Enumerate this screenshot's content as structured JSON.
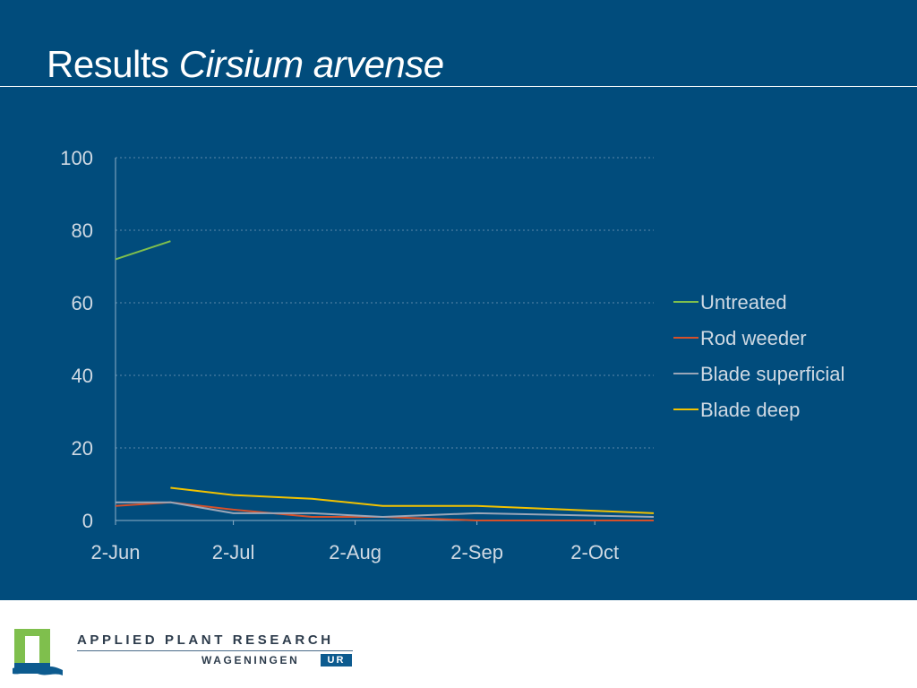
{
  "slide": {
    "title_main": "Results",
    "title_species": "Cirsium arvense"
  },
  "colors": {
    "background": "#014c7c",
    "untreated": "#7fbf4d",
    "rod_weeder": "#d4502a",
    "blade_superficial": "#9aa6b8",
    "blade_deep": "#f2c200"
  },
  "chart_data": {
    "type": "line",
    "title": "",
    "xlabel": "",
    "ylabel": "",
    "ylim": [
      0,
      100
    ],
    "yticks": [
      "0",
      "20",
      "40",
      "60",
      "80",
      "100"
    ],
    "xlim": [
      "2-Jun",
      "17-Oct"
    ],
    "xticks": [
      "2-Jun",
      "2-Jul",
      "2-Aug",
      "2-Sep",
      "2-Oct"
    ],
    "grid": "horizontal dotted",
    "legend_position": "right",
    "series": [
      {
        "name": "Untreated",
        "color": "#7fbf4d",
        "points": [
          {
            "x": "2-Jun",
            "y": 72
          },
          {
            "x": "16-Jun",
            "y": 77
          }
        ]
      },
      {
        "name": "Rod weeder",
        "color": "#d4502a",
        "points": [
          {
            "x": "2-Jun",
            "y": 4
          },
          {
            "x": "16-Jun",
            "y": 5
          },
          {
            "x": "2-Jul",
            "y": 3
          },
          {
            "x": "22-Jul",
            "y": 1
          },
          {
            "x": "9-Aug",
            "y": 1
          },
          {
            "x": "2-Sep",
            "y": 0
          },
          {
            "x": "17-Oct",
            "y": 0
          }
        ]
      },
      {
        "name": "Blade superficial",
        "color": "#9aa6b8",
        "points": [
          {
            "x": "2-Jun",
            "y": 5
          },
          {
            "x": "16-Jun",
            "y": 5
          },
          {
            "x": "2-Jul",
            "y": 2
          },
          {
            "x": "22-Jul",
            "y": 2
          },
          {
            "x": "9-Aug",
            "y": 1
          },
          {
            "x": "2-Sep",
            "y": 2
          },
          {
            "x": "17-Oct",
            "y": 1
          }
        ]
      },
      {
        "name": "Blade deep",
        "color": "#f2c200",
        "points": [
          {
            "x": "16-Jun",
            "y": 9
          },
          {
            "x": "2-Jul",
            "y": 7
          },
          {
            "x": "22-Jul",
            "y": 6
          },
          {
            "x": "9-Aug",
            "y": 4
          },
          {
            "x": "2-Sep",
            "y": 4
          },
          {
            "x": "17-Oct",
            "y": 2
          }
        ]
      }
    ]
  },
  "footer": {
    "org_name": "APPLIED PLANT RESEARCH",
    "org_sub": "WAGENINGEN",
    "org_ur": "UR"
  }
}
